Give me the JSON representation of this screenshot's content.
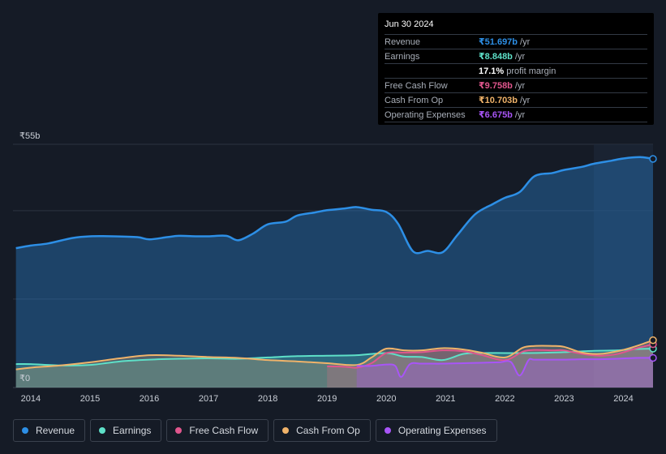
{
  "tooltip": {
    "date": "Jun 30 2024",
    "rows": [
      {
        "label": "Revenue",
        "value": "₹51.697b",
        "unit": "/yr",
        "color": "#2d8fe6"
      },
      {
        "label": "Earnings",
        "value": "₹8.848b",
        "unit": "/yr",
        "color": "#5ee0c8"
      },
      {
        "label": "",
        "value": "17.1%",
        "unit": "profit margin",
        "color": "#ffffff"
      },
      {
        "label": "Free Cash Flow",
        "value": "₹9.758b",
        "unit": "/yr",
        "color": "#e0568d"
      },
      {
        "label": "Cash From Op",
        "value": "₹10.703b",
        "unit": "/yr",
        "color": "#f0b36a"
      },
      {
        "label": "Operating Expenses",
        "value": "₹6.675b",
        "unit": "/yr",
        "color": "#a855f7"
      }
    ]
  },
  "legend": [
    {
      "label": "Revenue",
      "color": "#2d8fe6"
    },
    {
      "label": "Earnings",
      "color": "#5ee0c8"
    },
    {
      "label": "Free Cash Flow",
      "color": "#e0568d"
    },
    {
      "label": "Cash From Op",
      "color": "#f0b36a"
    },
    {
      "label": "Operating Expenses",
      "color": "#a855f7"
    }
  ],
  "chart_data": {
    "type": "line",
    "y_top_label": "₹55b",
    "y_bottom_label": "₹0",
    "ylim": [
      0,
      55
    ],
    "xlim": [
      2013.7,
      2024.5
    ],
    "x_ticks": [
      "2014",
      "2015",
      "2016",
      "2017",
      "2018",
      "2019",
      "2020",
      "2021",
      "2022",
      "2023",
      "2024"
    ],
    "x_tick_values": [
      2014,
      2015,
      2016,
      2017,
      2018,
      2019,
      2020,
      2021,
      2022,
      2023,
      2024
    ],
    "highlight_from": 2023.5,
    "series": [
      {
        "name": "Revenue",
        "color": "#2d8fe6",
        "x": [
          2013.75,
          2014.0,
          2014.3,
          2014.7,
          2015.0,
          2015.4,
          2015.8,
          2016.0,
          2016.3,
          2016.5,
          2016.8,
          2017.0,
          2017.3,
          2017.5,
          2017.75,
          2018.0,
          2018.3,
          2018.5,
          2018.8,
          2019.0,
          2019.3,
          2019.5,
          2019.75,
          2020.0,
          2020.2,
          2020.45,
          2020.7,
          2020.95,
          2021.2,
          2021.5,
          2021.8,
          2022.0,
          2022.25,
          2022.5,
          2022.8,
          2023.0,
          2023.3,
          2023.5,
          2023.8,
          2024.0,
          2024.3,
          2024.5
        ],
        "values": [
          31.5,
          32.1,
          32.6,
          33.8,
          34.2,
          34.2,
          34.0,
          33.5,
          34.0,
          34.3,
          34.2,
          34.2,
          34.3,
          33.3,
          34.8,
          36.9,
          37.5,
          38.9,
          39.6,
          40.1,
          40.5,
          40.8,
          40.2,
          39.7,
          37.0,
          30.8,
          30.9,
          30.6,
          34.5,
          39.2,
          41.5,
          42.9,
          44.2,
          47.8,
          48.5,
          49.2,
          49.9,
          50.6,
          51.3,
          51.8,
          52.1,
          51.7
        ]
      },
      {
        "name": "Earnings",
        "color": "#5ee0c8",
        "x": [
          2013.75,
          2014.0,
          2014.5,
          2015.0,
          2015.5,
          2016.0,
          2016.5,
          2017.0,
          2017.5,
          2018.0,
          2018.5,
          2019.0,
          2019.5,
          2020.0,
          2020.3,
          2020.6,
          2020.95,
          2021.3,
          2021.6,
          2022.0,
          2022.4,
          2022.8,
          2023.0,
          2023.5,
          2023.9,
          2024.2,
          2024.5
        ],
        "values": [
          5.3,
          5.3,
          5.0,
          5.1,
          5.9,
          6.3,
          6.5,
          6.6,
          6.5,
          6.8,
          7.1,
          7.2,
          7.3,
          7.8,
          7.0,
          6.9,
          6.2,
          7.6,
          7.8,
          7.8,
          7.8,
          7.9,
          8.0,
          8.3,
          8.4,
          8.7,
          8.8
        ]
      },
      {
        "name": "Free Cash Flow",
        "color": "#e0568d",
        "x": [
          2019.0,
          2019.3,
          2019.5,
          2019.75,
          2020.0,
          2020.3,
          2020.6,
          2020.95,
          2021.3,
          2021.6,
          2022.0,
          2022.3,
          2022.5,
          2022.8,
          2023.0,
          2023.3,
          2023.6,
          2023.9,
          2024.2,
          2024.5
        ],
        "values": [
          4.8,
          4.7,
          4.5,
          5.5,
          7.8,
          7.9,
          8.0,
          8.4,
          8.2,
          7.4,
          6.2,
          8.1,
          8.5,
          8.4,
          8.4,
          7.6,
          7.2,
          7.6,
          8.8,
          9.8
        ]
      },
      {
        "name": "Cash From Op",
        "color": "#f0b36a",
        "x": [
          2013.75,
          2014.0,
          2014.5,
          2015.0,
          2015.5,
          2016.0,
          2016.5,
          2017.0,
          2017.5,
          2018.0,
          2018.5,
          2019.0,
          2019.5,
          2019.75,
          2020.0,
          2020.3,
          2020.6,
          2020.95,
          2021.3,
          2021.6,
          2022.0,
          2022.3,
          2022.5,
          2022.8,
          2023.0,
          2023.3,
          2023.6,
          2023.9,
          2024.2,
          2024.5
        ],
        "values": [
          4.1,
          4.5,
          5.0,
          5.7,
          6.6,
          7.3,
          7.2,
          6.9,
          6.7,
          6.2,
          5.9,
          5.5,
          5.1,
          6.8,
          8.8,
          8.4,
          8.4,
          8.9,
          8.6,
          7.9,
          6.8,
          9.0,
          9.4,
          9.4,
          9.2,
          7.9,
          7.6,
          8.2,
          9.3,
          10.7
        ]
      },
      {
        "name": "Operating Expenses",
        "color": "#a855f7",
        "x": [
          2019.5,
          2019.75,
          2020.0,
          2020.15,
          2020.25,
          2020.4,
          2020.6,
          2020.95,
          2021.3,
          2021.6,
          2021.9,
          2022.1,
          2022.25,
          2022.4,
          2022.5,
          2022.8,
          2023.0,
          2023.3,
          2023.6,
          2023.9,
          2024.2,
          2024.5
        ],
        "values": [
          4.9,
          4.9,
          5.2,
          4.9,
          2.4,
          5.3,
          5.4,
          5.4,
          5.5,
          5.6,
          5.7,
          5.8,
          2.7,
          6.2,
          6.3,
          6.3,
          6.3,
          6.4,
          6.4,
          6.5,
          6.7,
          6.7
        ]
      }
    ]
  }
}
